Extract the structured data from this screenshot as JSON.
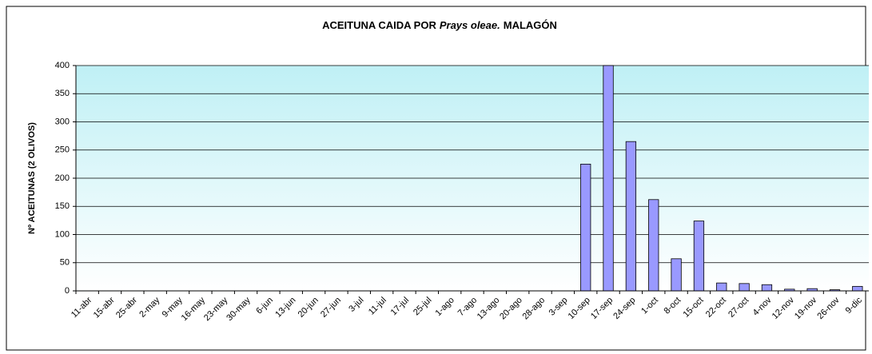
{
  "chart_data": {
    "type": "bar",
    "title": [
      "ACEITUNA CAIDA POR",
      "Prays oleae.",
      "MALAGÓN"
    ],
    "y_label": "Nº ACEITUNAS (2 OLIVOS)",
    "categories": [
      "11-abr",
      "15-abr",
      "25-abr",
      "2-may",
      "9-may",
      "16-may",
      "23-may",
      "30-may",
      "6-jun",
      "13-jun",
      "20-jun",
      "27-jun",
      "3-jul",
      "11-jul",
      "17-jul",
      "25-jul",
      "1-ago",
      "7-ago",
      "13-ago",
      "20-ago",
      "28-ago",
      "3-sep",
      "10-sep",
      "17-sep",
      "24-sep",
      "1-oct",
      "8-oct",
      "15-oct",
      "22-oct",
      "27-oct",
      "4-nov",
      "12-nov",
      "19-nov",
      "26-nov",
      "9-dic"
    ],
    "values": [
      0,
      0,
      0,
      0,
      0,
      0,
      0,
      0,
      0,
      0,
      0,
      0,
      0,
      0,
      0,
      0,
      0,
      0,
      0,
      0,
      0,
      0,
      225,
      400,
      265,
      162,
      57,
      124,
      14,
      13,
      11,
      3,
      4,
      2,
      8
    ],
    "color": "#9999ff",
    "ylim": [
      0,
      400
    ],
    "yticks": [
      0,
      50,
      100,
      150,
      200,
      250,
      300,
      350,
      400
    ],
    "grid": true
  }
}
